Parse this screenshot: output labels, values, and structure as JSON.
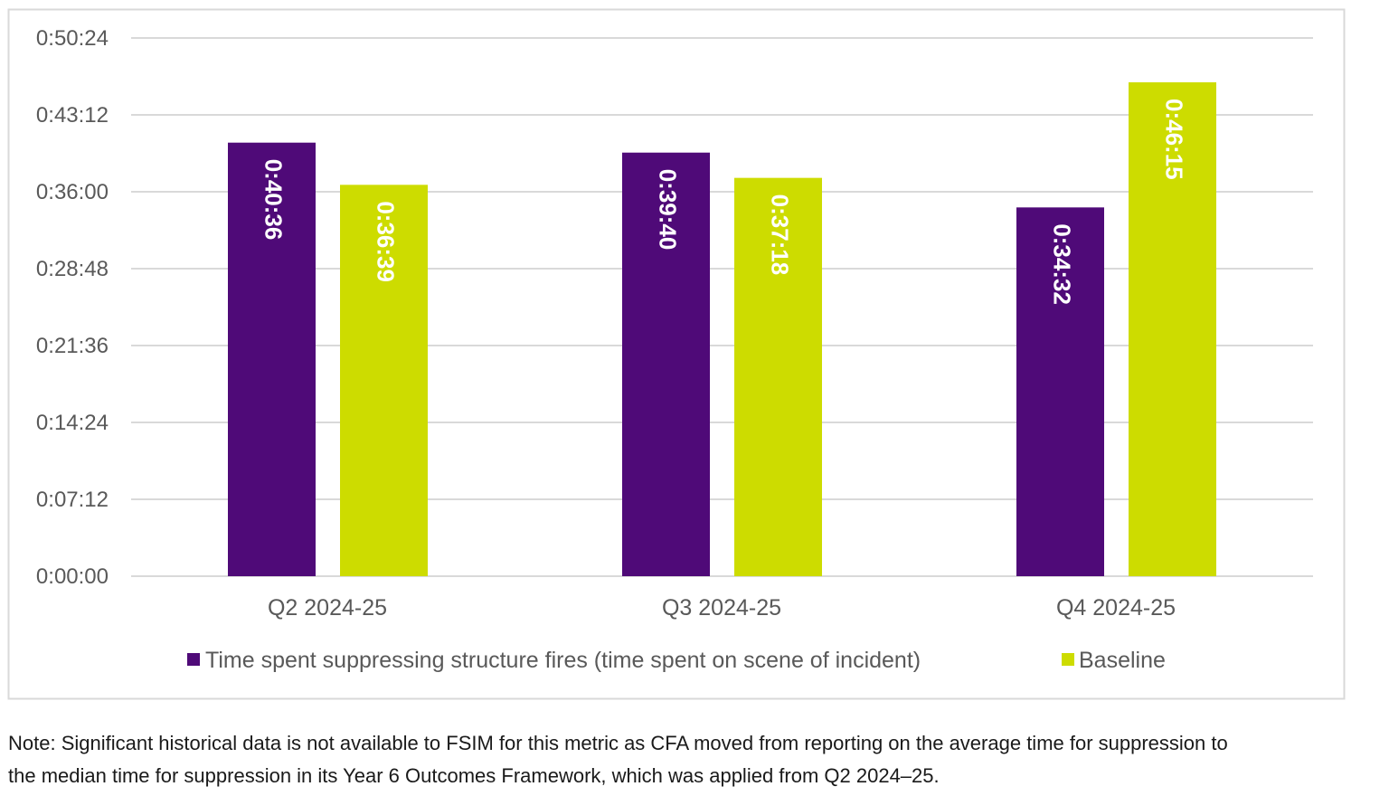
{
  "chart_data": {
    "type": "bar",
    "categories": [
      "Q2 2024-25",
      "Q3 2024-25",
      "Q4 2024-25"
    ],
    "series": [
      {
        "name": "Time spent suppressing structure fires (time spent on scene of incident)",
        "color": "#4f0a78",
        "values": [
          "0:40:36",
          "0:39:40",
          "0:34:32"
        ]
      },
      {
        "name": "Baseline",
        "color": "#cddc00",
        "values": [
          "0:36:39",
          "0:37:18",
          "0:46:15"
        ]
      }
    ],
    "y_ticks": [
      "0:00:00",
      "0:07:12",
      "0:14:24",
      "0:21:36",
      "0:28:48",
      "0:36:00",
      "0:43:12",
      "0:50:24"
    ],
    "ylim": [
      "0:00:00",
      "0:50:24"
    ],
    "grid": true,
    "legend": "bottom",
    "data_labels": "inside-top-rotated"
  },
  "note": {
    "line1": "Note: Significant historical data is not available to FSIM for this metric as CFA moved from reporting on the average time for suppression to",
    "line2": "the median time for suppression in its Year 6 Outcomes Framework, which was applied from Q2 2024–25."
  }
}
